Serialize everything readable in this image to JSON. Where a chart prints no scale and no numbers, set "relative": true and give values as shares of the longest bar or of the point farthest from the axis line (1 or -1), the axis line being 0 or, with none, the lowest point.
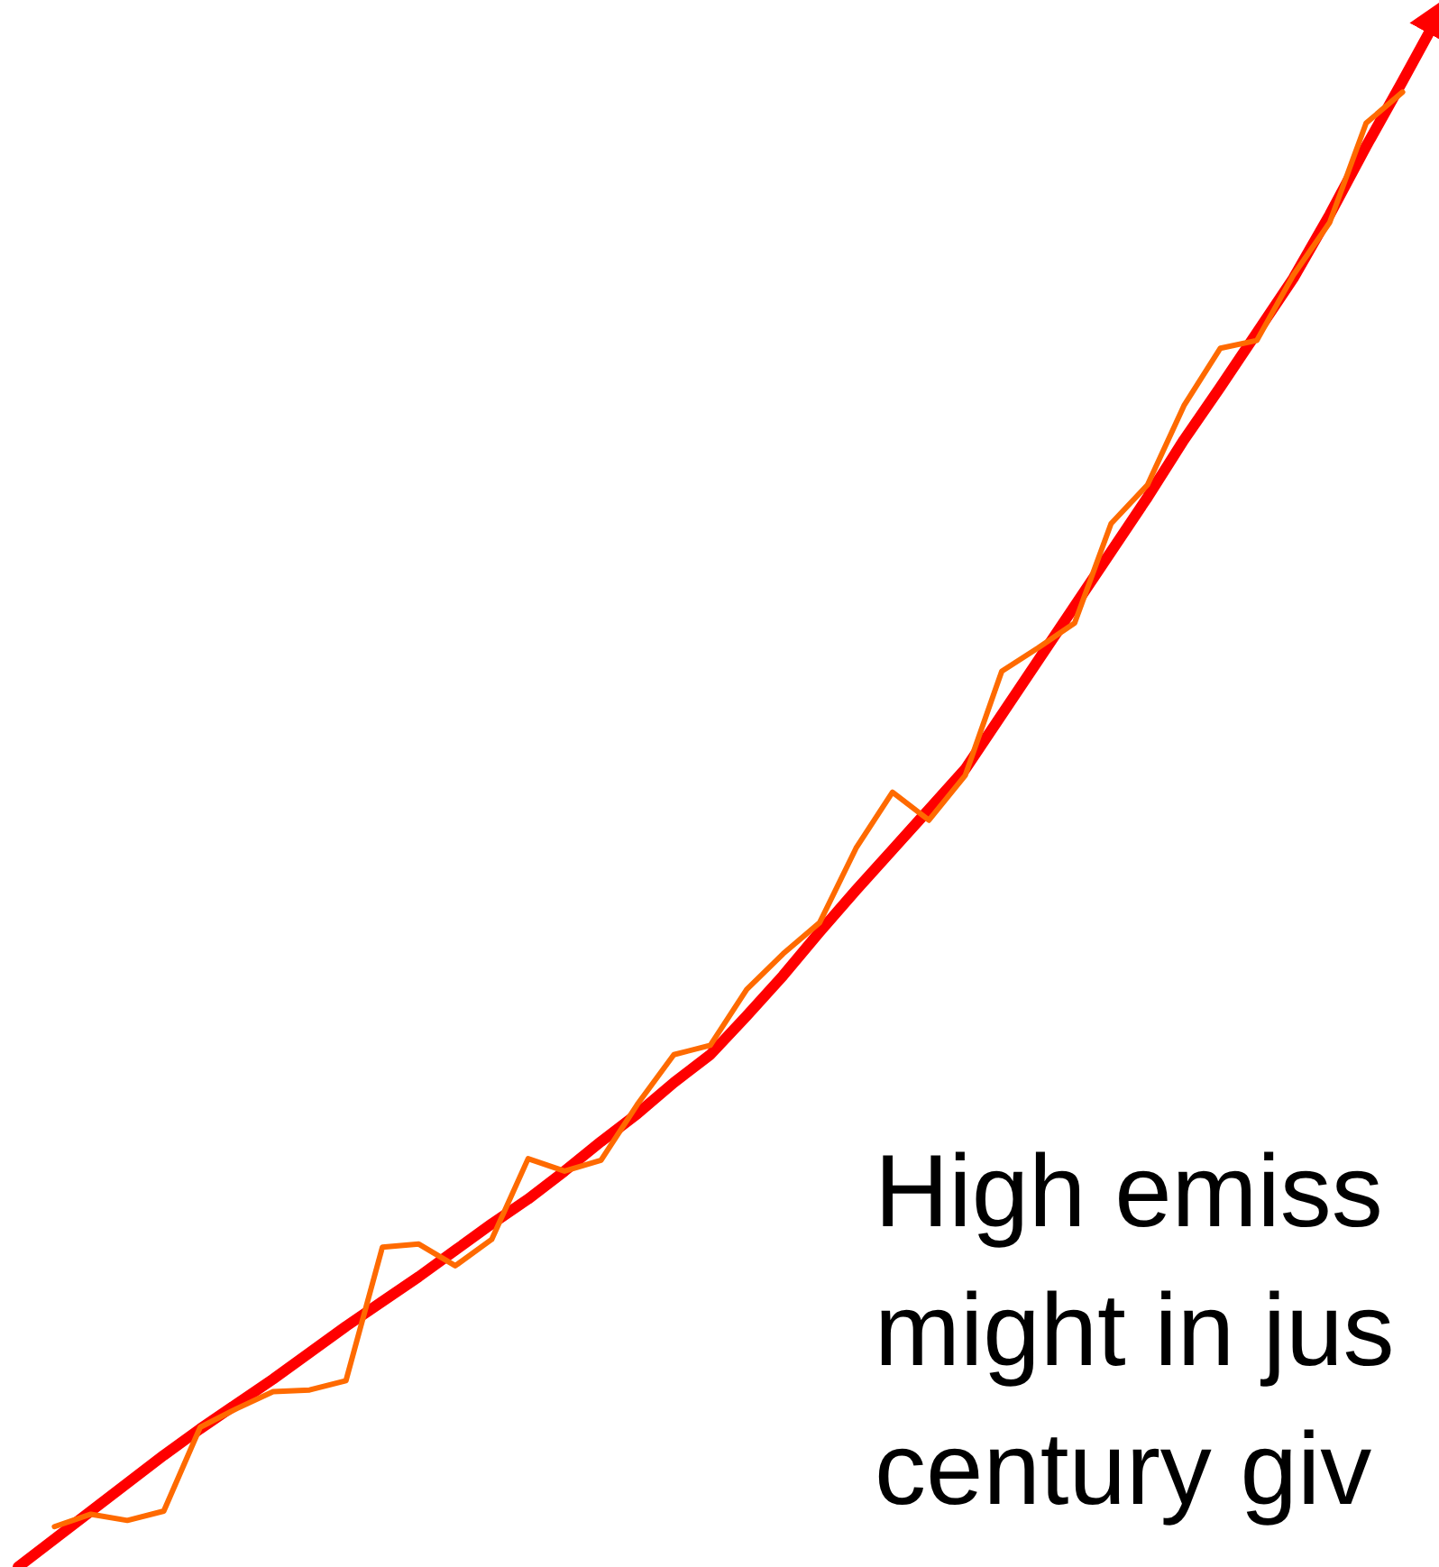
{
  "chart_data": {
    "type": "line",
    "relative": true,
    "line_style": "solid",
    "annotations": [
      "High emiss\nmight in jus\ncentury giv"
    ],
    "categories": [
      null,
      null,
      null,
      null,
      null,
      null,
      null,
      null,
      null,
      null,
      null,
      null,
      null,
      null,
      null,
      null,
      null,
      null,
      null,
      null,
      null,
      null,
      null,
      null,
      null,
      null,
      null,
      null,
      null,
      null,
      null,
      null,
      null,
      null,
      null,
      null,
      null,
      null,
      null,
      null
    ],
    "series": [
      {
        "color": "#ff0000",
        "values": [
          0,
          0.018,
          0.036,
          0.054,
          0.072,
          0.089,
          0.105,
          0.121,
          0.138,
          0.155,
          0.171,
          0.187,
          0.204,
          0.221,
          0.237,
          0.255,
          0.274,
          0.292,
          0.312,
          0.33,
          0.355,
          0.381,
          0.409,
          0.436,
          0.462,
          0.488,
          0.514,
          0.549,
          0.584,
          0.619,
          0.654,
          0.689,
          0.726,
          0.76,
          0.795,
          0.83,
          0.871,
          0.915,
          0.957,
          1
        ]
      },
      {
        "color": "#ff6a00",
        "values": [
          null,
          0.026,
          0.034,
          0.03,
          0.036,
          0.09,
          0.102,
          0.113,
          0.114,
          0.12,
          0.206,
          0.208,
          0.194,
          0.211,
          0.263,
          0.255,
          0.262,
          0.298,
          0.33,
          0.336,
          0.372,
          0.395,
          0.415,
          0.463,
          0.499,
          0.481,
          0.51,
          0.577,
          0.592,
          0.608,
          0.672,
          0.697,
          0.748,
          0.785,
          0.79,
          0.832,
          0.866,
          0.93,
          0.95,
          null
        ]
      }
    ]
  }
}
